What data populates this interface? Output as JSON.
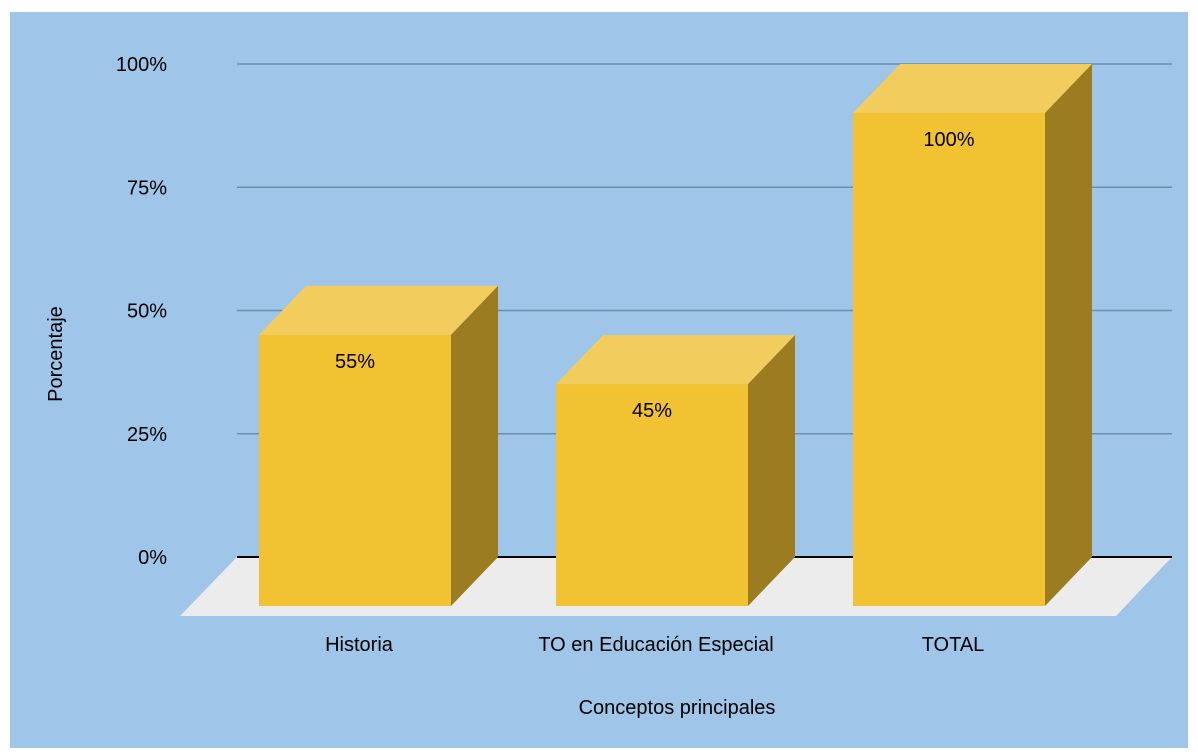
{
  "chart_data": {
    "type": "bar",
    "categories": [
      "Historia",
      "TO en Educación Especial",
      "TOTAL"
    ],
    "values": [
      55,
      45,
      100
    ],
    "value_labels": [
      "55%",
      "45%",
      "100%"
    ],
    "title": "",
    "xlabel": "Conceptos principales",
    "ylabel": "Porcentaje",
    "ylim": [
      0,
      100
    ],
    "y_ticks": [
      0,
      25,
      50,
      75,
      100
    ],
    "y_tick_labels": [
      "0%",
      "25%",
      "50%",
      "75%",
      "100%"
    ],
    "grid": true,
    "legend": "none",
    "style": "3d",
    "colors": {
      "background": "#9fc5e8",
      "bar_front": "#f1c232",
      "bar_top": "#f2cd5d",
      "bar_side": "#9c7c20",
      "floor": "#ececec",
      "gridline": "#6f8fab",
      "baseline": "#000000"
    }
  }
}
